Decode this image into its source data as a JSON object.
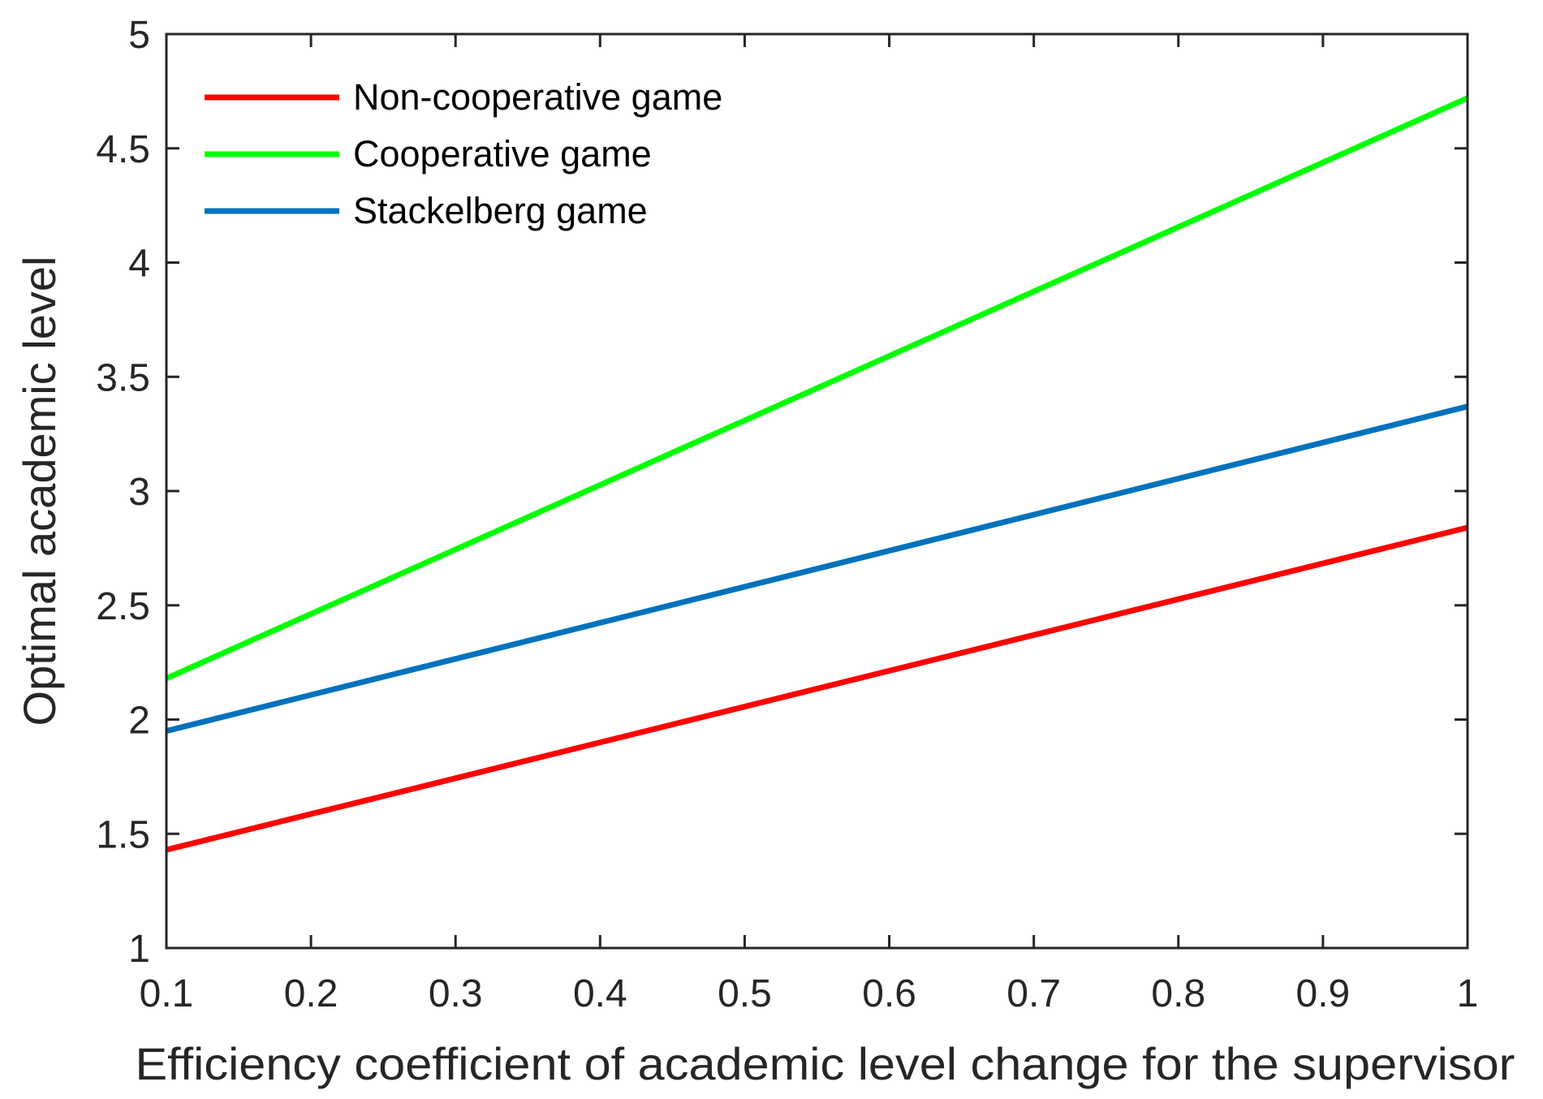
{
  "chart_data": {
    "type": "line",
    "title": "",
    "xlabel": "Efficiency coefficient of academic level change for the supervisor",
    "ylabel": "Optimal academic level",
    "xlim": [
      0.1,
      1
    ],
    "ylim": [
      1,
      5
    ],
    "xticks": [
      0.1,
      0.2,
      0.3,
      0.4,
      0.5,
      0.6,
      0.7,
      0.8,
      0.9,
      1
    ],
    "xtick_labels": [
      "0.1",
      "0.2",
      "0.3",
      "0.4",
      "0.5",
      "0.6",
      "0.7",
      "0.8",
      "0.9",
      "1"
    ],
    "yticks": [
      1,
      1.5,
      2,
      2.5,
      3,
      3.5,
      4,
      4.5,
      5
    ],
    "ytick_labels": [
      "1",
      "1.5",
      "2",
      "2.5",
      "3",
      "3.5",
      "4",
      "4.5",
      "5"
    ],
    "grid": false,
    "legend_position": "top-left",
    "series": [
      {
        "name": "Non-cooperative game",
        "color": "#ff0000",
        "x": [
          0.1,
          1
        ],
        "y": [
          1.43,
          2.84
        ]
      },
      {
        "name": "Cooperative game",
        "color": "#00ff00",
        "x": [
          0.1,
          1
        ],
        "y": [
          2.18,
          4.72
        ]
      },
      {
        "name": "Stackelberg game",
        "color": "#0072bd",
        "x": [
          0.1,
          1
        ],
        "y": [
          1.95,
          3.37
        ]
      }
    ]
  }
}
